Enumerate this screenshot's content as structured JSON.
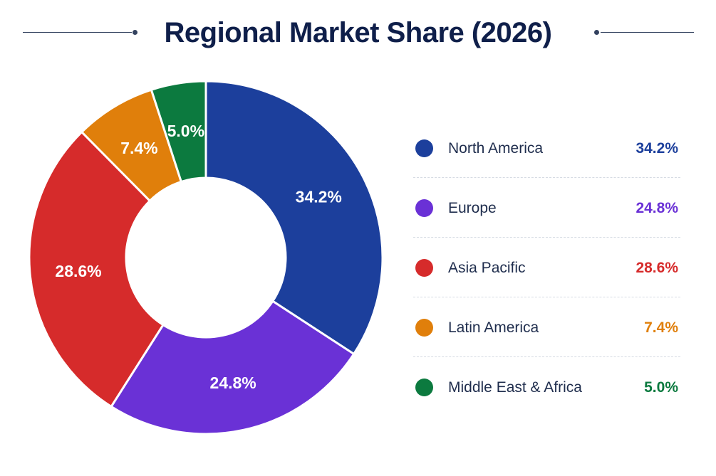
{
  "chart_data": {
    "type": "pie",
    "title": "Regional Market Share (2026)",
    "donut": true,
    "categories": [
      "North America",
      "Europe",
      "Asia Pacific",
      "Latin America",
      "Middle East & Africa"
    ],
    "values": [
      34.2,
      24.8,
      28.6,
      7.4,
      5.0
    ],
    "value_labels": [
      "34.2%",
      "24.8%",
      "28.6%",
      "7.4%",
      "5.0%"
    ],
    "colors": [
      "#1c3f9c",
      "#6a31d6",
      "#d62b2b",
      "#e07f0b",
      "#0c7a3f"
    ],
    "legend_position": "right",
    "start_angle": "top",
    "direction": "clockwise"
  }
}
